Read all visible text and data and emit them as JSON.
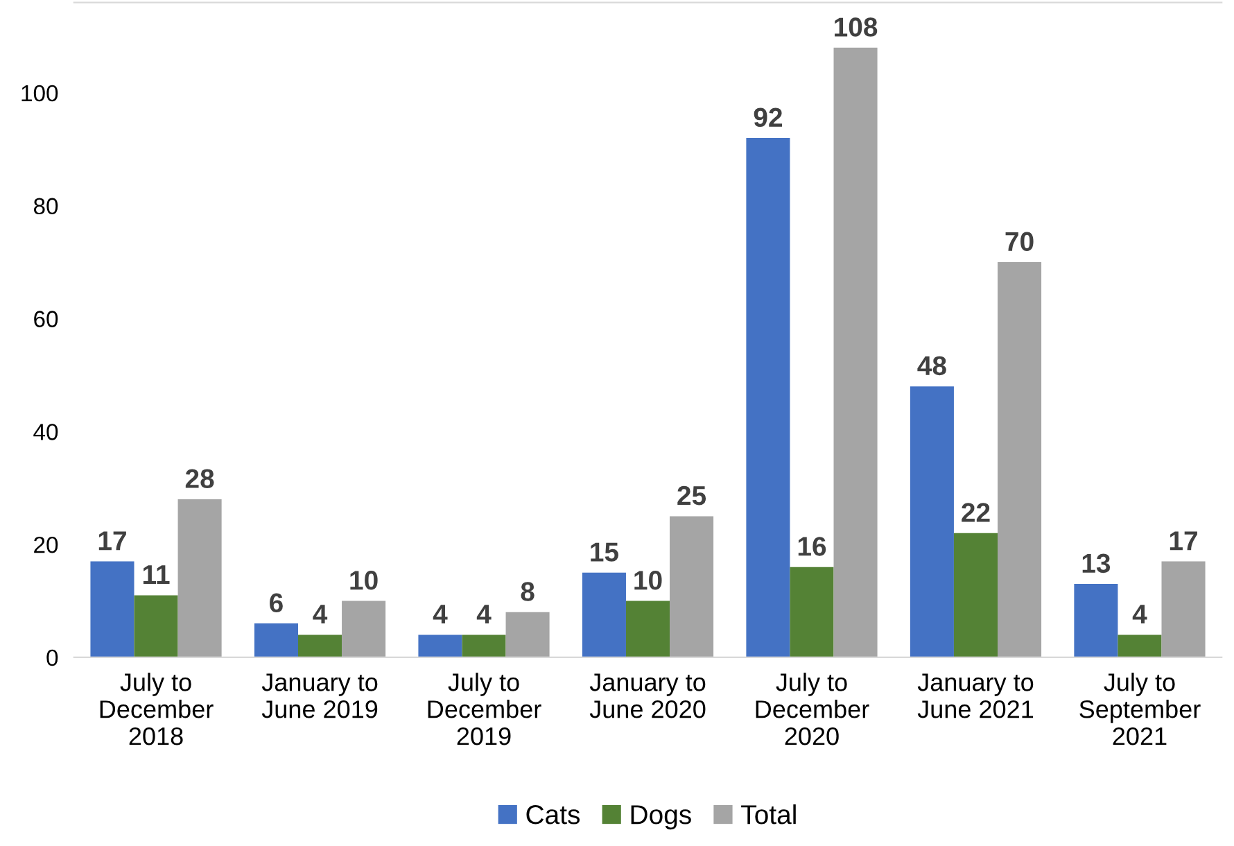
{
  "chart_data": {
    "type": "bar",
    "categories": [
      "July to\nDecember\n2018",
      "January to\nJune 2019",
      "July to\nDecember\n2019",
      "January to\nJune 2020",
      "July to\nDecember\n2020",
      "January to\nJune 2021",
      "July to\nSeptember\n2021"
    ],
    "series": [
      {
        "name": "Cats",
        "color": "#4472c4",
        "values": [
          17,
          6,
          4,
          15,
          92,
          48,
          13
        ]
      },
      {
        "name": "Dogs",
        "color": "#548235",
        "values": [
          11,
          4,
          4,
          10,
          16,
          22,
          4
        ]
      },
      {
        "name": "Total",
        "color": "#a5a5a5",
        "values": [
          28,
          10,
          8,
          25,
          108,
          70,
          17
        ]
      }
    ],
    "ylim": [
      0,
      116
    ],
    "yticks": [
      0,
      20,
      40,
      60,
      80,
      100
    ],
    "data_labels": true,
    "grid": false,
    "legend": "bottom"
  }
}
